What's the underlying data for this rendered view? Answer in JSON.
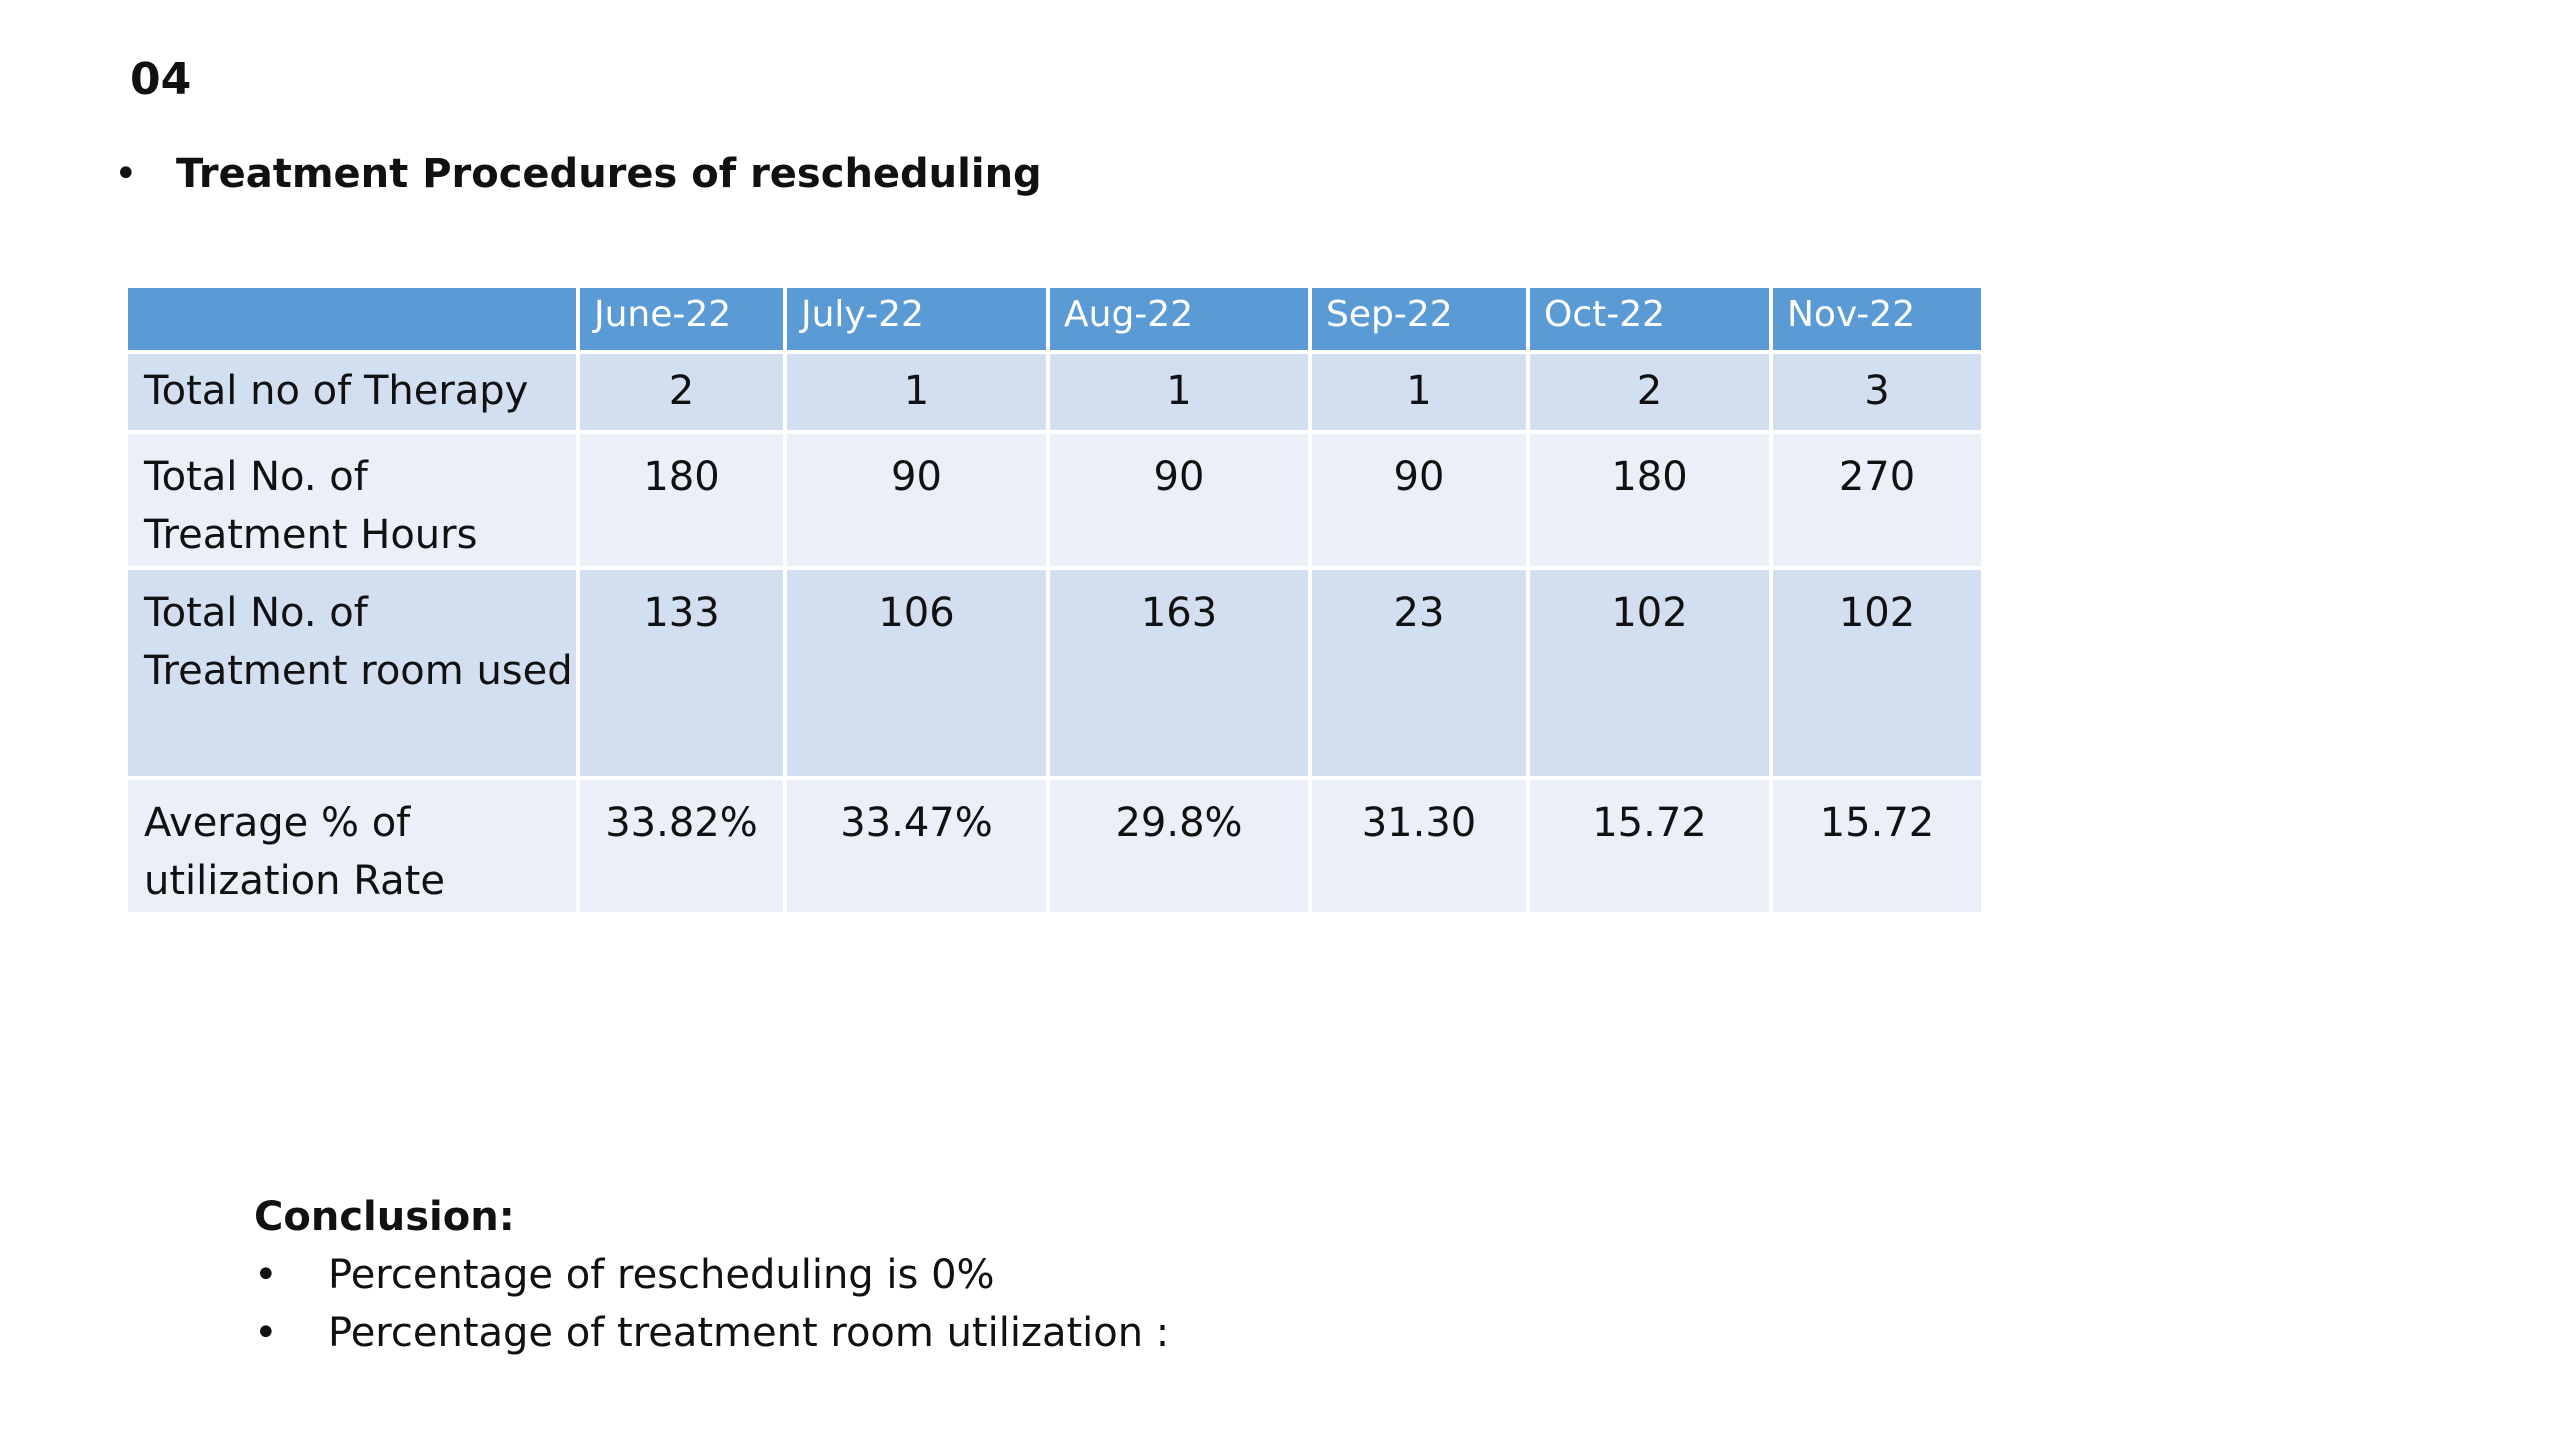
{
  "slide_number": "04",
  "heading": {
    "bullet": "•",
    "text": "Treatment Procedures of rescheduling"
  },
  "table": {
    "columns": [
      "June-22",
      "July-22",
      "Aug-22",
      "Sep-22",
      "Oct-22",
      "Nov-22"
    ],
    "rows": [
      {
        "label": "Total no of Therapy",
        "values": [
          "2",
          "1",
          "1",
          "1",
          "2",
          "3"
        ]
      },
      {
        "label": "Total No. of Treatment Hours",
        "values": [
          "180",
          "90",
          "90",
          "90",
          "180",
          "270"
        ]
      },
      {
        "label": "Total No. of Treatment room used",
        "values": [
          "133",
          "106",
          "163",
          "23",
          "102",
          "102"
        ]
      },
      {
        "label": "Average % of utilization Rate",
        "values": [
          "33.82%",
          "33.47%",
          "29.8%",
          "31.30",
          "15.72",
          "15.72"
        ]
      }
    ]
  },
  "conclusion": {
    "title": "Conclusion:",
    "bullet": "•",
    "items": [
      "Percentage of rescheduling is 0%",
      "Percentage of treatment room utilization :"
    ]
  },
  "colors": {
    "header_bg": "#5b9bd5",
    "row_odd_bg": "#d2dff0",
    "row_even_bg": "#eaeff8"
  }
}
